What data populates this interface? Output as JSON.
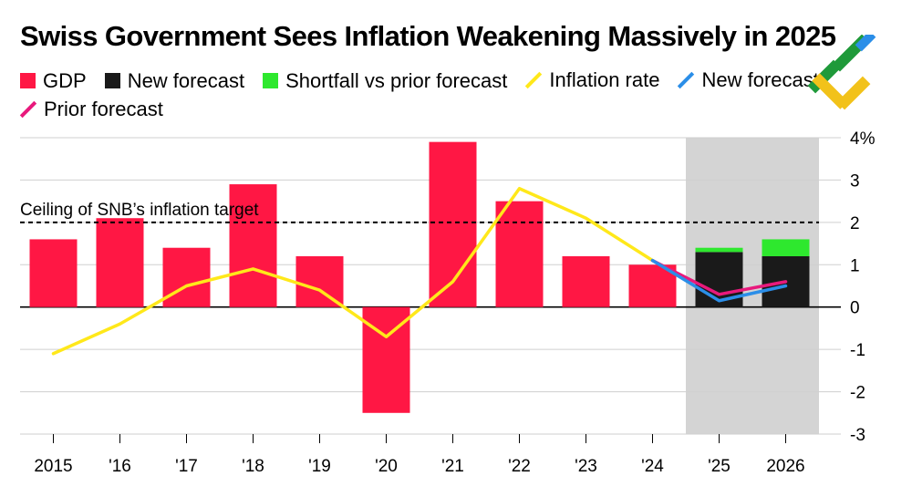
{
  "title": "Swiss Government Sees Inflation Weakening Massively in 2025",
  "legend": [
    {
      "label": "GDP",
      "kind": "box",
      "color": "#ff1744"
    },
    {
      "label": "New forecast",
      "kind": "box",
      "color": "#1a1a1a"
    },
    {
      "label": "Shortfall vs prior forecast",
      "kind": "box",
      "color": "#2ee82e"
    },
    {
      "label": "Inflation rate",
      "kind": "line",
      "color": "#ffe81a"
    },
    {
      "label": "New forecast",
      "kind": "line",
      "color": "#2b8ee8"
    },
    {
      "label": "Prior forecast",
      "kind": "line",
      "color": "#e8197c"
    }
  ],
  "annotation": "Ceiling of SNB’s inflation target",
  "chart_data": {
    "type": "bar",
    "title": "Swiss Government Sees Inflation Weakening Massively in 2025",
    "categories": [
      "2015",
      "'16",
      "'17",
      "'18",
      "'19",
      "'20",
      "'21",
      "'22",
      "'23",
      "'24",
      "'25",
      "2026"
    ],
    "ylim": [
      -3,
      4
    ],
    "yticks": [
      4,
      3,
      2,
      1,
      0,
      -1,
      -2,
      -3
    ],
    "ytick_labels": [
      "4%",
      "3",
      "2",
      "1",
      "0",
      "-1",
      "-2",
      "-3"
    ],
    "forecast_shade": [
      "'25",
      "2026"
    ],
    "reference_line": {
      "value": 2,
      "label": "Ceiling of SNB’s inflation target"
    },
    "series": [
      {
        "name": "GDP",
        "kind": "bar",
        "color": "#ff1744",
        "values": [
          1.6,
          2.1,
          1.4,
          2.9,
          1.2,
          -2.5,
          3.9,
          2.5,
          1.2,
          1.0,
          null,
          null
        ]
      },
      {
        "name": "New forecast",
        "kind": "bar",
        "color": "#1a1a1a",
        "values": [
          null,
          null,
          null,
          null,
          null,
          null,
          null,
          null,
          null,
          null,
          1.3,
          1.2
        ]
      },
      {
        "name": "Shortfall vs prior forecast",
        "kind": "bar-stack",
        "color": "#2ee82e",
        "values": [
          null,
          null,
          null,
          null,
          null,
          null,
          null,
          null,
          null,
          null,
          0.1,
          0.4
        ]
      },
      {
        "name": "Inflation rate",
        "kind": "line",
        "color": "#ffe81a",
        "values": [
          -1.1,
          -0.4,
          0.5,
          0.9,
          0.4,
          -0.7,
          0.6,
          2.8,
          2.1,
          1.1,
          null,
          null
        ]
      },
      {
        "name": "New forecast",
        "kind": "line",
        "color": "#2b8ee8",
        "values": [
          null,
          null,
          null,
          null,
          null,
          null,
          null,
          null,
          null,
          1.1,
          0.15,
          0.5
        ]
      },
      {
        "name": "Prior forecast",
        "kind": "line",
        "color": "#e8197c",
        "values": [
          null,
          null,
          null,
          null,
          null,
          null,
          null,
          null,
          null,
          1.1,
          0.3,
          0.6
        ]
      }
    ]
  }
}
